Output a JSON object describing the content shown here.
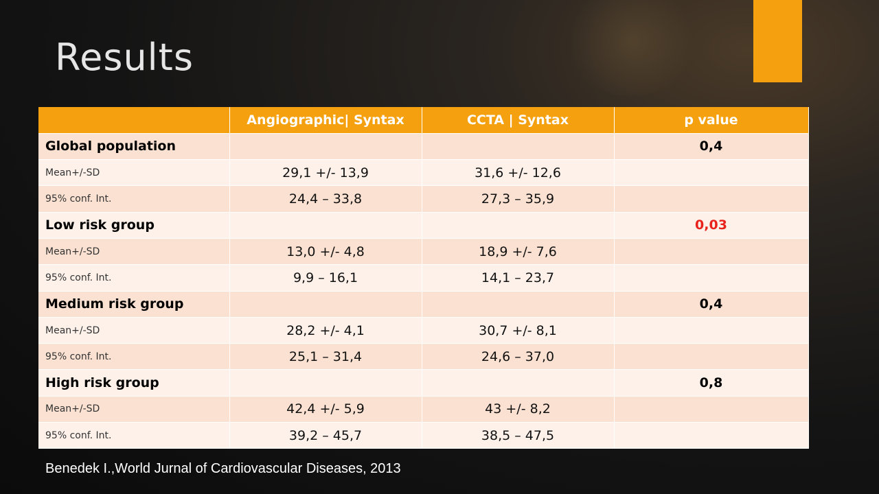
{
  "slide": {
    "title": "Results",
    "accent_color": "#f5a00f",
    "significant_color": "#e8231b"
  },
  "table": {
    "columns": [
      "",
      "Angiographic| Syntax",
      "CCTA | Syntax",
      "p value"
    ],
    "rows": [
      {
        "kind": "group",
        "label": "Global population",
        "angio": "",
        "ccta": "",
        "p": "0,4",
        "significant": false
      },
      {
        "kind": "stat",
        "label": "Mean+/-SD",
        "angio": "29,1 +/- 13,9",
        "ccta": "31,6 +/- 12,6",
        "p": ""
      },
      {
        "kind": "stat",
        "label": "95% conf. Int.",
        "angio": "24,4 – 33,8",
        "ccta": "27,3 – 35,9",
        "p": ""
      },
      {
        "kind": "group",
        "label": "Low risk group",
        "angio": "",
        "ccta": "",
        "p": "0,03",
        "significant": true
      },
      {
        "kind": "stat",
        "label": "Mean+/-SD",
        "angio": "13,0 +/- 4,8",
        "ccta": "18,9 +/- 7,6",
        "p": ""
      },
      {
        "kind": "stat",
        "label": "95% conf. Int.",
        "angio": "9,9 – 16,1",
        "ccta": "14,1 – 23,7",
        "p": ""
      },
      {
        "kind": "group",
        "label": "Medium risk group",
        "angio": "",
        "ccta": "",
        "p": "0,4",
        "significant": false
      },
      {
        "kind": "stat",
        "label": "Mean+/-SD",
        "angio": "28,2 +/- 4,1",
        "ccta": "30,7 +/- 8,1",
        "p": ""
      },
      {
        "kind": "stat",
        "label": "95% conf. Int.",
        "angio": "25,1 – 31,4",
        "ccta": "24,6 – 37,0",
        "p": ""
      },
      {
        "kind": "group",
        "label": "High risk group",
        "angio": "",
        "ccta": "",
        "p": "0,8",
        "significant": false
      },
      {
        "kind": "stat",
        "label": "Mean+/-SD",
        "angio": "42,4 +/- 5,9",
        "ccta": "43 +/- 8,2",
        "p": ""
      },
      {
        "kind": "stat",
        "label": "95% conf. Int.",
        "angio": "39,2 – 45,7",
        "ccta": "38,5 – 47,5",
        "p": ""
      }
    ]
  },
  "citation": "Benedek I.,World Jurnal of Cardiovascular Diseases, 2013"
}
